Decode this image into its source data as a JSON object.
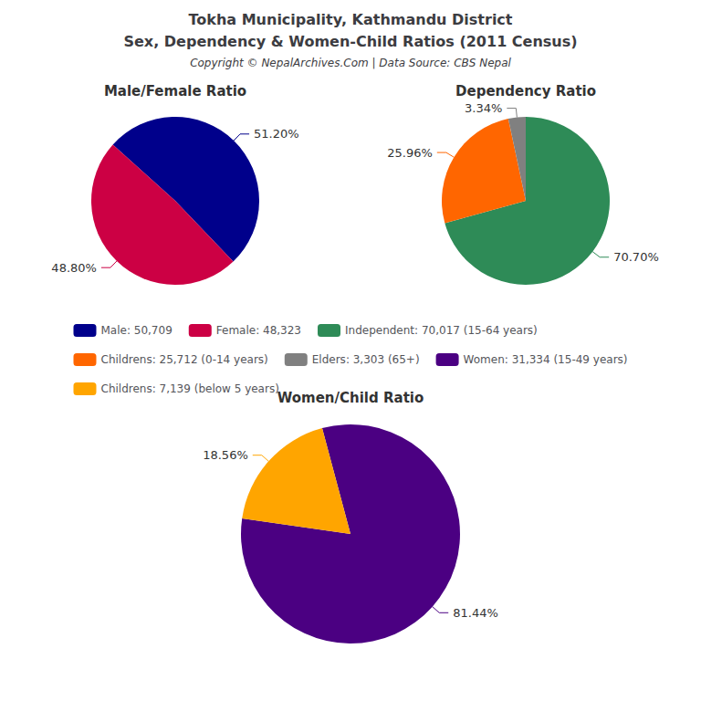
{
  "title": "Tokha Municipality, Kathmandu District",
  "subtitle": "Sex, Dependency & Women-Child Ratios (2011 Census)",
  "annotations": [
    "Copyright © NepalArchives.Com | Data Source: CBS Nepal"
  ],
  "legend": "center",
  "chart_data": [
    {
      "type": "pie",
      "title": "Male/Female Ratio",
      "categories": [
        "Male: 50,709",
        "Female: 48,323"
      ],
      "values": [
        51.2,
        48.8
      ],
      "value_labels": [
        "51.20%",
        "48.80%"
      ],
      "colors": [
        "#00008B",
        "#CC0044"
      ],
      "data_labels": true
    },
    {
      "type": "pie",
      "title": "Dependency Ratio",
      "categories": [
        "Independent: 70,017 (15-64 years)",
        "Childrens: 25,712 (0-14 years)",
        "Elders: 3,303 (65+)"
      ],
      "values": [
        70.7,
        25.96,
        3.34
      ],
      "value_labels": [
        "70.70%",
        "25.96%",
        "3.34%"
      ],
      "colors": [
        "#2E8B57",
        "#FF6600",
        "#808080"
      ],
      "data_labels": true
    },
    {
      "type": "pie",
      "title": "Women/Child Ratio",
      "categories": [
        "Women: 31,334 (15-49 years)",
        "Childrens: 7,139 (below 5 years)"
      ],
      "values": [
        81.44,
        18.56
      ],
      "value_labels": [
        "81.44%",
        "18.56%"
      ],
      "colors": [
        "#4B0082",
        "#FFA500"
      ],
      "data_labels": true
    }
  ]
}
